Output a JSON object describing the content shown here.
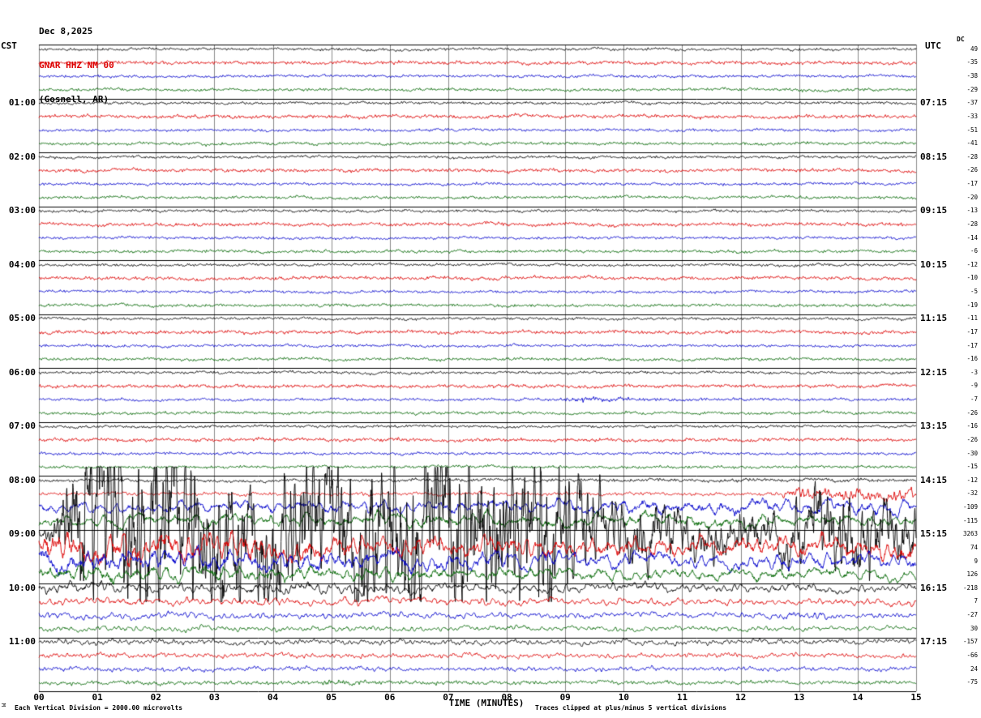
{
  "title": {
    "date": "Dec 8,2025",
    "station": "GNAR HHZ NM 00",
    "location": "(Gosnell, AR)"
  },
  "axes": {
    "left_header": "CST",
    "right_header": "UTC",
    "dc_header": "DC",
    "time_axis_label": "TIME (MINUTES)",
    "minute_labels": [
      "00",
      "01",
      "02",
      "03",
      "04",
      "05",
      "06",
      "07",
      "08",
      "09",
      "10",
      "11",
      "12",
      "13",
      "14",
      "15"
    ],
    "left_hour_labels": [
      "01:00",
      "02:00",
      "03:00",
      "04:00",
      "05:00",
      "06:00",
      "07:00",
      "08:00",
      "09:00",
      "10:00",
      "11:00"
    ],
    "right_hour_labels": [
      "07:15",
      "08:15",
      "09:15",
      "10:15",
      "11:15",
      "12:15",
      "13:15",
      "14:15",
      "15:15",
      "16:15",
      "17:15"
    ]
  },
  "footer": {
    "left_note": "Each Vertical Division = 2000.00 microvolts",
    "right_note": "Traces clipped at plus/minus 5 vertical divisions",
    "corner_mark": "M"
  },
  "chart_data": {
    "type": "line",
    "subtype": "helicorder_seismogram",
    "station": "GNAR HHZ NM 00",
    "location": "(Gosnell, AR)",
    "date": "Dec 8,2025",
    "x_axis": {
      "label": "TIME (MINUTES)",
      "min": 0,
      "max": 15,
      "tick_step": 1
    },
    "row_duration_minutes": 15,
    "rows_per_hour": 4,
    "clip_divisions": 5,
    "microvolts_per_division": 2000,
    "color_cycle": [
      "#000000",
      "#dd0000",
      "#0000cc",
      "#006600"
    ],
    "event": {
      "description": "Large clipped earthquake waveform: emergent onset late in the 08:15 CST trace, long-period energy through 08:30-08:45, clipped peak on the 09:00 CST (15:15 UTC) trace (DC 3263), coda decaying through ~11:00 CST",
      "onset_row_cst": "08:15",
      "peak_row_cst": "09:00",
      "peak_dc": 3263
    },
    "rows": [
      {
        "cst": "00:00",
        "color": "#000000",
        "dc": 49,
        "period_min": 0.08,
        "amp_envelope": [
          [
            0,
            1.5
          ],
          [
            15,
            1.5
          ]
        ]
      },
      {
        "cst": "00:15",
        "color": "#dd0000",
        "dc": -35,
        "period_min": 0.08,
        "amp_envelope": [
          [
            0,
            1.9
          ],
          [
            15,
            1.9
          ]
        ]
      },
      {
        "cst": "00:30",
        "color": "#0000cc",
        "dc": -38,
        "period_min": 0.08,
        "amp_envelope": [
          [
            0,
            1.5
          ],
          [
            15,
            1.5
          ]
        ]
      },
      {
        "cst": "00:45",
        "color": "#006600",
        "dc": -29,
        "period_min": 0.08,
        "amp_envelope": [
          [
            0,
            1.6
          ],
          [
            15,
            1.6
          ]
        ]
      },
      {
        "cst": "01:00",
        "color": "#000000",
        "dc": -37,
        "period_min": 0.08,
        "amp_envelope": [
          [
            0,
            1.5
          ],
          [
            15,
            1.5
          ]
        ]
      },
      {
        "cst": "01:15",
        "color": "#dd0000",
        "dc": -33,
        "period_min": 0.08,
        "amp_envelope": [
          [
            0,
            1.9
          ],
          [
            15,
            1.9
          ]
        ]
      },
      {
        "cst": "01:30",
        "color": "#0000cc",
        "dc": -51,
        "period_min": 0.08,
        "amp_envelope": [
          [
            0,
            1.5
          ],
          [
            15,
            1.5
          ]
        ]
      },
      {
        "cst": "01:45",
        "color": "#006600",
        "dc": -41,
        "period_min": 0.08,
        "amp_envelope": [
          [
            0,
            1.6
          ],
          [
            15,
            1.6
          ]
        ]
      },
      {
        "cst": "02:00",
        "color": "#000000",
        "dc": -28,
        "period_min": 0.08,
        "amp_envelope": [
          [
            0,
            1.5
          ],
          [
            15,
            1.5
          ]
        ]
      },
      {
        "cst": "02:15",
        "color": "#dd0000",
        "dc": -26,
        "period_min": 0.08,
        "amp_envelope": [
          [
            0,
            1.9
          ],
          [
            15,
            1.9
          ]
        ]
      },
      {
        "cst": "02:30",
        "color": "#0000cc",
        "dc": -17,
        "period_min": 0.08,
        "amp_envelope": [
          [
            0,
            1.5
          ],
          [
            15,
            1.5
          ]
        ]
      },
      {
        "cst": "02:45",
        "color": "#006600",
        "dc": -20,
        "period_min": 0.08,
        "amp_envelope": [
          [
            0,
            1.6
          ],
          [
            15,
            1.6
          ]
        ]
      },
      {
        "cst": "03:00",
        "color": "#000000",
        "dc": -13,
        "period_min": 0.08,
        "amp_envelope": [
          [
            0,
            1.5
          ],
          [
            15,
            1.5
          ]
        ]
      },
      {
        "cst": "03:15",
        "color": "#dd0000",
        "dc": -28,
        "period_min": 0.08,
        "amp_envelope": [
          [
            0,
            1.9
          ],
          [
            15,
            1.9
          ]
        ]
      },
      {
        "cst": "03:30",
        "color": "#0000cc",
        "dc": -14,
        "period_min": 0.08,
        "amp_envelope": [
          [
            0,
            1.5
          ],
          [
            15,
            1.5
          ]
        ]
      },
      {
        "cst": "03:45",
        "color": "#006600",
        "dc": -6,
        "period_min": 0.08,
        "amp_envelope": [
          [
            0,
            1.6
          ],
          [
            15,
            1.6
          ]
        ]
      },
      {
        "cst": "04:00",
        "color": "#000000",
        "dc": -12,
        "period_min": 0.08,
        "amp_envelope": [
          [
            0,
            1.5
          ],
          [
            15,
            1.5
          ]
        ]
      },
      {
        "cst": "04:15",
        "color": "#dd0000",
        "dc": -10,
        "period_min": 0.08,
        "amp_envelope": [
          [
            0,
            1.9
          ],
          [
            15,
            1.9
          ]
        ]
      },
      {
        "cst": "04:30",
        "color": "#0000cc",
        "dc": -5,
        "period_min": 0.08,
        "amp_envelope": [
          [
            0,
            1.5
          ],
          [
            15,
            1.5
          ]
        ]
      },
      {
        "cst": "04:45",
        "color": "#006600",
        "dc": -19,
        "period_min": 0.08,
        "amp_envelope": [
          [
            0,
            1.6
          ],
          [
            15,
            1.6
          ]
        ]
      },
      {
        "cst": "05:00",
        "color": "#000000",
        "dc": -11,
        "period_min": 0.08,
        "amp_envelope": [
          [
            0,
            1.5
          ],
          [
            15,
            1.5
          ]
        ]
      },
      {
        "cst": "05:15",
        "color": "#dd0000",
        "dc": -17,
        "period_min": 0.08,
        "amp_envelope": [
          [
            0,
            1.9
          ],
          [
            15,
            1.9
          ]
        ]
      },
      {
        "cst": "05:30",
        "color": "#0000cc",
        "dc": -17,
        "period_min": 0.08,
        "amp_envelope": [
          [
            0,
            1.5
          ],
          [
            15,
            1.5
          ]
        ]
      },
      {
        "cst": "05:45",
        "color": "#006600",
        "dc": -16,
        "period_min": 0.08,
        "amp_envelope": [
          [
            0,
            1.6
          ],
          [
            15,
            1.6
          ]
        ]
      },
      {
        "cst": "06:00",
        "color": "#000000",
        "dc": -3,
        "period_min": 0.08,
        "amp_envelope": [
          [
            0,
            1.5
          ],
          [
            15,
            1.5
          ]
        ]
      },
      {
        "cst": "06:15",
        "color": "#dd0000",
        "dc": -9,
        "period_min": 0.08,
        "amp_envelope": [
          [
            0,
            1.9
          ],
          [
            15,
            1.9
          ]
        ]
      },
      {
        "cst": "06:30",
        "color": "#0000cc",
        "dc": -7,
        "period_min": 0.08,
        "amp_envelope": [
          [
            0,
            1.5
          ],
          [
            8.8,
            1.5
          ],
          [
            9.2,
            3.2
          ],
          [
            10.2,
            1.8
          ],
          [
            15,
            1.5
          ]
        ]
      },
      {
        "cst": "06:45",
        "color": "#006600",
        "dc": -26,
        "period_min": 0.08,
        "amp_envelope": [
          [
            0,
            1.6
          ],
          [
            15,
            1.6
          ]
        ]
      },
      {
        "cst": "07:00",
        "color": "#000000",
        "dc": -16,
        "period_min": 0.08,
        "amp_envelope": [
          [
            0,
            1.5
          ],
          [
            15,
            1.5
          ]
        ]
      },
      {
        "cst": "07:15",
        "color": "#dd0000",
        "dc": -26,
        "period_min": 0.08,
        "amp_envelope": [
          [
            0,
            1.9
          ],
          [
            15,
            1.9
          ]
        ]
      },
      {
        "cst": "07:30",
        "color": "#0000cc",
        "dc": -30,
        "period_min": 0.08,
        "amp_envelope": [
          [
            0,
            1.5
          ],
          [
            15,
            1.5
          ]
        ]
      },
      {
        "cst": "07:45",
        "color": "#006600",
        "dc": -15,
        "period_min": 0.08,
        "amp_envelope": [
          [
            0,
            1.6
          ],
          [
            15,
            1.6
          ]
        ]
      },
      {
        "cst": "08:00",
        "color": "#000000",
        "dc": -12,
        "period_min": 0.08,
        "amp_envelope": [
          [
            0,
            1.6
          ],
          [
            15,
            1.8
          ]
        ]
      },
      {
        "cst": "08:15",
        "color": "#dd0000",
        "dc": -32,
        "period_min": 0.12,
        "amp_envelope": [
          [
            0,
            1.9
          ],
          [
            12.6,
            1.9
          ],
          [
            13.0,
            7
          ],
          [
            14.2,
            6
          ],
          [
            15,
            6.5
          ]
        ]
      },
      {
        "cst": "08:30",
        "color": "#0000cc",
        "dc": -109,
        "period_min": 0.45,
        "amp_envelope": [
          [
            0,
            6
          ],
          [
            3,
            7
          ],
          [
            8,
            7
          ],
          [
            12,
            9
          ],
          [
            15,
            8
          ]
        ]
      },
      {
        "cst": "08:45",
        "color": "#006600",
        "dc": -115,
        "period_min": 0.5,
        "amp_envelope": [
          [
            0,
            7
          ],
          [
            5,
            8
          ],
          [
            10,
            8
          ],
          [
            15,
            7
          ]
        ]
      },
      {
        "cst": "09:00",
        "color": "#000000",
        "dc": 3263,
        "period_min": 0.13,
        "amp_envelope": [
          [
            0,
            4
          ],
          [
            0.3,
            20
          ],
          [
            0.7,
            90
          ],
          [
            2.8,
            95
          ],
          [
            3.6,
            60
          ],
          [
            4.4,
            85
          ],
          [
            5.3,
            70
          ],
          [
            6.1,
            90
          ],
          [
            8.7,
            90
          ],
          [
            9.6,
            42
          ],
          [
            10.8,
            26
          ],
          [
            12.6,
            20
          ],
          [
            13.5,
            50
          ],
          [
            14.4,
            38
          ],
          [
            15,
            30
          ]
        ]
      },
      {
        "cst": "09:15",
        "color": "#dd0000",
        "dc": 74,
        "period_min": 0.3,
        "amp_envelope": [
          [
            0,
            17
          ],
          [
            3,
            14
          ],
          [
            6,
            12
          ],
          [
            9,
            10
          ],
          [
            12,
            10
          ],
          [
            15,
            12
          ]
        ]
      },
      {
        "cst": "09:30",
        "color": "#0000cc",
        "dc": 9,
        "period_min": 0.35,
        "amp_envelope": [
          [
            0,
            13
          ],
          [
            4,
            11
          ],
          [
            8,
            9
          ],
          [
            12,
            8
          ],
          [
            15,
            9
          ]
        ]
      },
      {
        "cst": "09:45",
        "color": "#006600",
        "dc": 126,
        "period_min": 0.4,
        "amp_envelope": [
          [
            0,
            9
          ],
          [
            5,
            8
          ],
          [
            10,
            7
          ],
          [
            15,
            6
          ]
        ]
      },
      {
        "cst": "10:00",
        "color": "#000000",
        "dc": -218,
        "period_min": 0.22,
        "amp_envelope": [
          [
            0,
            6
          ],
          [
            2,
            5
          ],
          [
            5,
            6
          ],
          [
            8,
            4.5
          ],
          [
            11,
            5
          ],
          [
            15,
            4
          ]
        ]
      },
      {
        "cst": "10:15",
        "color": "#dd0000",
        "dc": 7,
        "period_min": 0.22,
        "amp_envelope": [
          [
            0,
            4.5
          ],
          [
            15,
            3.5
          ]
        ]
      },
      {
        "cst": "10:30",
        "color": "#0000cc",
        "dc": -27,
        "period_min": 0.18,
        "amp_envelope": [
          [
            0,
            3.5
          ],
          [
            12.4,
            3
          ],
          [
            12.9,
            5
          ],
          [
            14,
            3
          ],
          [
            15,
            3
          ]
        ]
      },
      {
        "cst": "10:45",
        "color": "#006600",
        "dc": 30,
        "period_min": 0.18,
        "amp_envelope": [
          [
            0,
            3
          ],
          [
            15,
            2.6
          ]
        ]
      },
      {
        "cst": "11:00",
        "color": "#000000",
        "dc": -157,
        "period_min": 0.15,
        "amp_envelope": [
          [
            0,
            3
          ],
          [
            15,
            2.6
          ]
        ]
      },
      {
        "cst": "11:15",
        "color": "#dd0000",
        "dc": -66,
        "period_min": 0.14,
        "amp_envelope": [
          [
            0,
            2.8
          ],
          [
            15,
            2.4
          ]
        ]
      },
      {
        "cst": "11:30",
        "color": "#0000cc",
        "dc": 24,
        "period_min": 0.12,
        "amp_envelope": [
          [
            0,
            2.4
          ],
          [
            15,
            2.2
          ]
        ]
      },
      {
        "cst": "11:45",
        "color": "#006600",
        "dc": -75,
        "period_min": 0.1,
        "amp_envelope": [
          [
            0,
            2.2
          ],
          [
            4.8,
            2.2
          ],
          [
            5.1,
            3.6
          ],
          [
            5.6,
            2.2
          ],
          [
            15,
            2
          ]
        ]
      }
    ]
  }
}
